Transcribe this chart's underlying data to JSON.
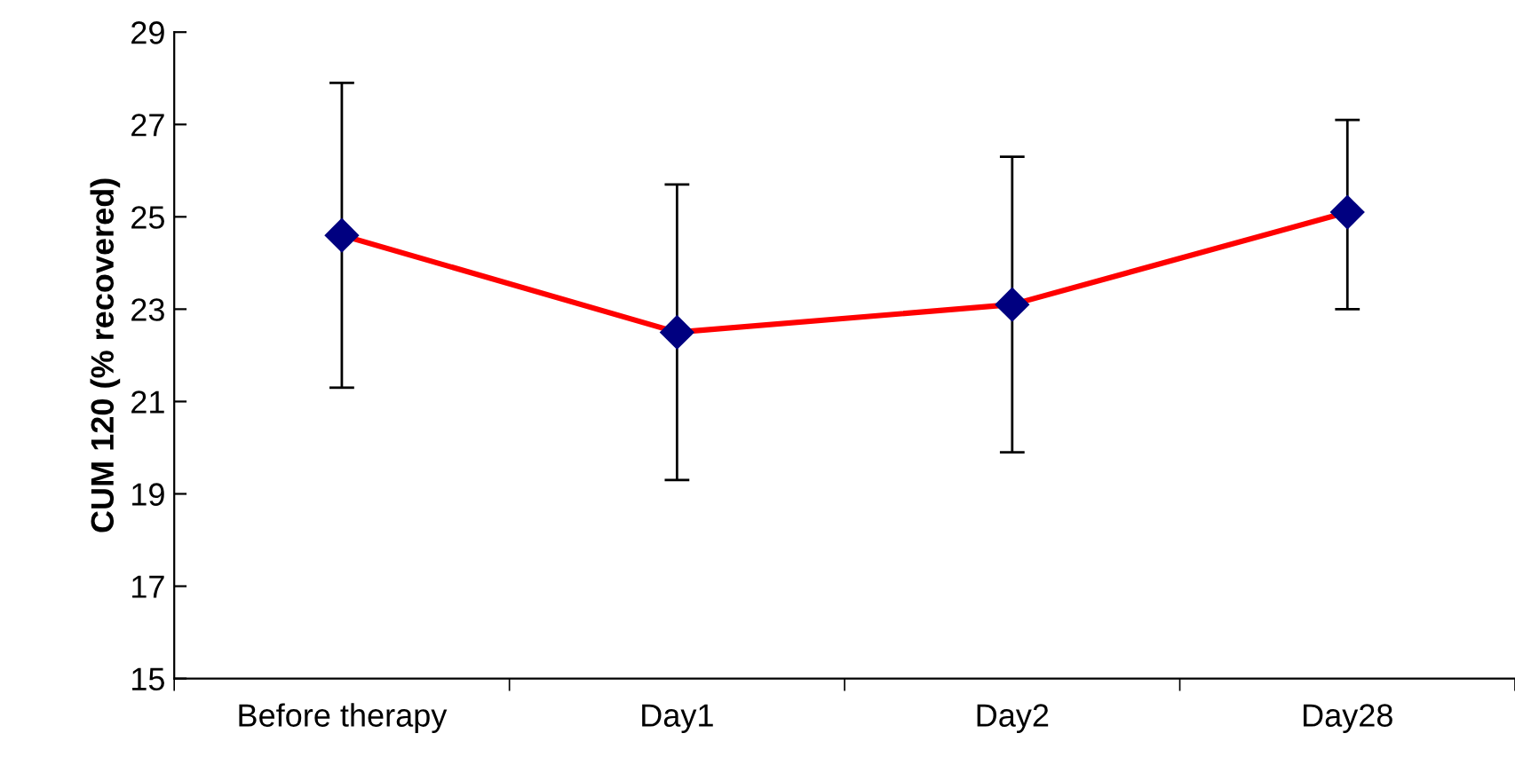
{
  "chart_data": {
    "type": "line",
    "ylabel": "CUM 120 (% recovered)",
    "categories": [
      "Before therapy",
      "Day1",
      "Day2",
      "Day28"
    ],
    "series": [
      {
        "color": "#ff0000",
        "colors": [
          "#000080",
          "#000080",
          "#000080",
          "#000080"
        ],
        "values": [
          24.6,
          22.5,
          23.1,
          25.1
        ],
        "errors": [
          [
            21.3,
            27.9
          ],
          [
            19.3,
            25.7
          ],
          [
            19.9,
            26.3
          ],
          [
            23.0,
            27.1
          ]
        ]
      }
    ],
    "ylim": [
      15,
      29
    ],
    "yticks": [
      15,
      17,
      19,
      21,
      23,
      25,
      27,
      29
    ],
    "marker": "diamond",
    "line_style": "solid"
  }
}
